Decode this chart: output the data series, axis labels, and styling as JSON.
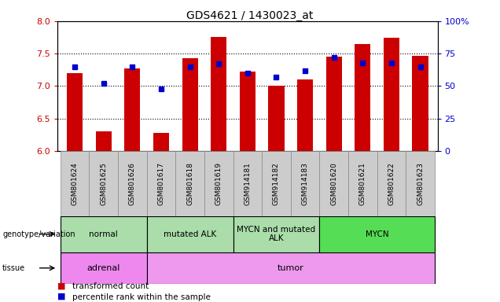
{
  "title": "GDS4621 / 1430023_at",
  "samples": [
    "GSM801624",
    "GSM801625",
    "GSM801626",
    "GSM801617",
    "GSM801618",
    "GSM801619",
    "GSM914181",
    "GSM914182",
    "GSM914183",
    "GSM801620",
    "GSM801621",
    "GSM801622",
    "GSM801623"
  ],
  "transformed_count": [
    7.2,
    6.3,
    7.27,
    6.28,
    7.43,
    7.76,
    7.22,
    7.0,
    7.1,
    7.45,
    7.65,
    7.75,
    7.47
  ],
  "percentile_rank": [
    65,
    52,
    65,
    48,
    65,
    67,
    60,
    57,
    62,
    72,
    68,
    68,
    65
  ],
  "ylim_left": [
    6.0,
    8.0
  ],
  "ylim_right": [
    0,
    100
  ],
  "yticks_left": [
    6.0,
    6.5,
    7.0,
    7.5,
    8.0
  ],
  "yticks_right": [
    0,
    25,
    50,
    75,
    100
  ],
  "bar_color": "#cc0000",
  "dot_color": "#0000cc",
  "genotype_groups": [
    {
      "label": "normal",
      "start": 0,
      "end": 3,
      "color": "#aaddaa"
    },
    {
      "label": "mutated ALK",
      "start": 3,
      "end": 6,
      "color": "#aaddaa"
    },
    {
      "label": "MYCN and mutated\nALK",
      "start": 6,
      "end": 9,
      "color": "#aaddaa"
    },
    {
      "label": "MYCN",
      "start": 9,
      "end": 13,
      "color": "#55dd55"
    }
  ],
  "tissue_groups": [
    {
      "label": "adrenal",
      "start": 0,
      "end": 3,
      "color": "#ee88ee"
    },
    {
      "label": "tumor",
      "start": 3,
      "end": 13,
      "color": "#ee99ee"
    }
  ],
  "legend_items": [
    {
      "label": "transformed count",
      "color": "#cc0000"
    },
    {
      "label": "percentile rank within the sample",
      "color": "#0000cc"
    }
  ]
}
